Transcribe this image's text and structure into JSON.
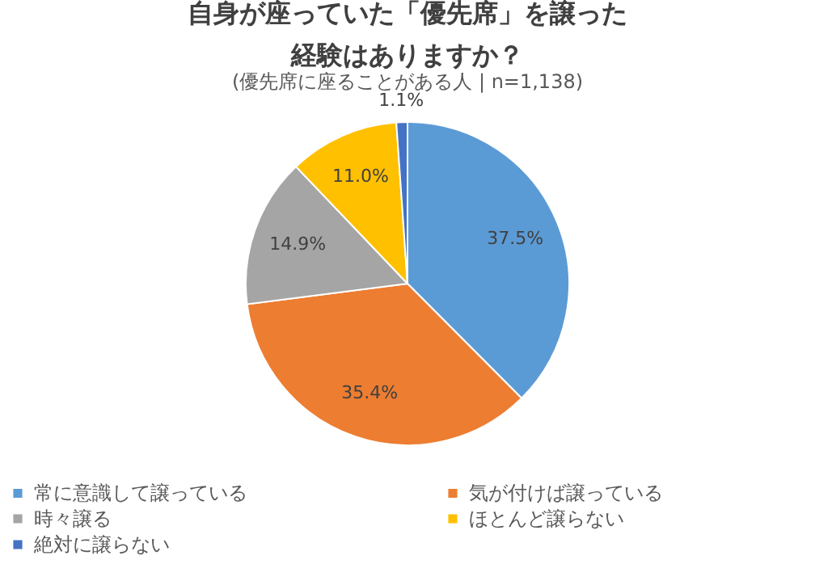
{
  "chart_data": {
    "type": "pie",
    "title": "自身が座っていた「優先席」を譲った経験はありますか？",
    "subtitle": "(優先席に座ることがある人 | n=1,138)",
    "categories": [
      "常に意識して譲っている",
      "気が付けば譲っている",
      "時々譲る",
      "ほとんど譲らない",
      "絶対に譲らない"
    ],
    "values": [
      37.5,
      35.4,
      14.9,
      11.0,
      1.1
    ],
    "value_labels": [
      "37.5%",
      "35.4%",
      "14.9%",
      "11.0%",
      "1.1%"
    ],
    "colors": [
      "#5b9bd5",
      "#ed7d31",
      "#a5a5a5",
      "#ffc000",
      "#4472c4"
    ],
    "legend": "bottom"
  }
}
